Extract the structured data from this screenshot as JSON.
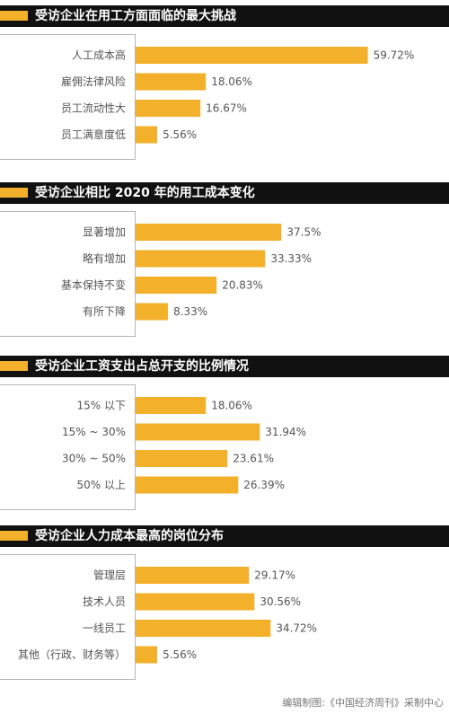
{
  "colors": {
    "bar": "#f3b02a",
    "header_bg": "#111111",
    "header_text": "#ffffff",
    "frame": "#b5b5b5"
  },
  "footer": {
    "credit": "编辑制图:《中国经济周刊》采制中心"
  },
  "chart_data": [
    {
      "type": "bar",
      "orientation": "horizontal",
      "title": "受访企业在用工方面面临的最大挑战",
      "categories": [
        "人工成本高",
        "雇佣法律风险",
        "员工流动性大",
        "员工满意度低"
      ],
      "values": [
        59.72,
        18.06,
        16.67,
        5.56
      ],
      "labels": [
        "59.72%",
        "18.06%",
        "16.67%",
        "5.56%"
      ],
      "unit": "%",
      "xlim": [
        0,
        60
      ],
      "grid": false
    },
    {
      "type": "bar",
      "orientation": "horizontal",
      "title": "受访企业相比 2020 年的用工成本变化",
      "categories": [
        "显著增加",
        "略有增加",
        "基本保持不变",
        "有所下降"
      ],
      "values": [
        37.5,
        33.33,
        20.83,
        8.33
      ],
      "labels": [
        "37.5%",
        "33.33%",
        "20.83%",
        "8.33%"
      ],
      "unit": "%",
      "xlim": [
        0,
        60
      ],
      "grid": false
    },
    {
      "type": "bar",
      "orientation": "horizontal",
      "title": "受访企业工资支出占总开支的比例情况",
      "categories": [
        "15% 以下",
        "15% ~ 30%",
        "30% ~ 50%",
        "50% 以上"
      ],
      "values": [
        18.06,
        31.94,
        23.61,
        26.39
      ],
      "labels": [
        "18.06%",
        "31.94%",
        "23.61%",
        "26.39%"
      ],
      "unit": "%",
      "xlim": [
        0,
        60
      ],
      "grid": false
    },
    {
      "type": "bar",
      "orientation": "horizontal",
      "title": "受访企业人力成本最高的岗位分布",
      "categories": [
        "管理层",
        "技术人员",
        "一线员工",
        "其他（行政、财务等）"
      ],
      "values": [
        29.17,
        30.56,
        34.72,
        5.56
      ],
      "labels": [
        "29.17%",
        "30.56%",
        "34.72%",
        "5.56%"
      ],
      "unit": "%",
      "xlim": [
        0,
        60
      ],
      "grid": false
    }
  ]
}
